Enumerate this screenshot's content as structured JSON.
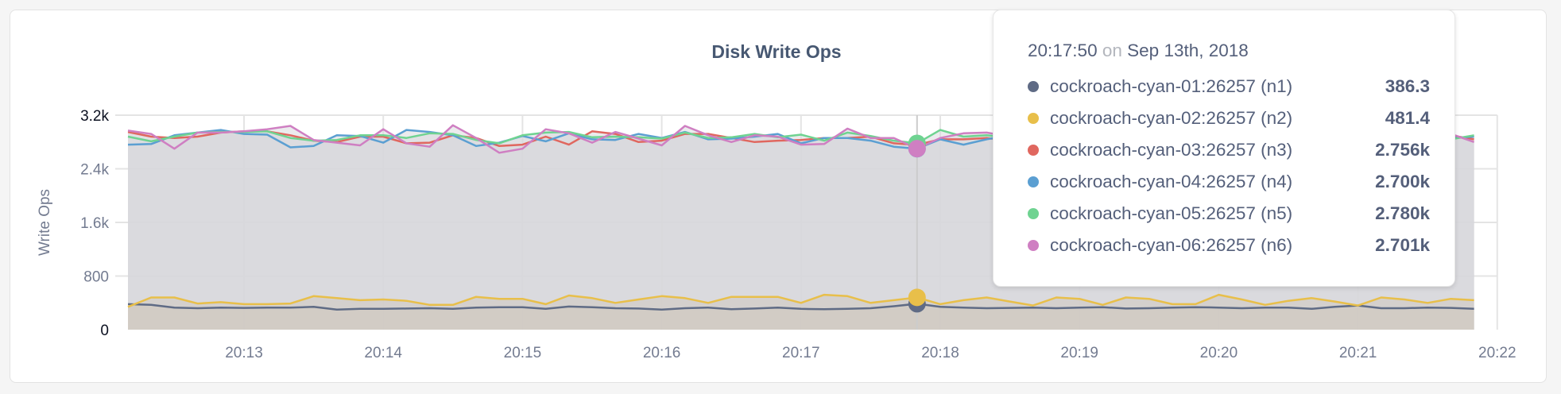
{
  "chart_data": {
    "type": "line",
    "title": "Disk Write Ops",
    "ylabel": "Write Ops",
    "xlabel": "",
    "ylim": [
      0,
      3200
    ],
    "yticks": [
      "0",
      "800",
      "1.6k",
      "2.4k",
      "3.2k"
    ],
    "xticks": [
      "20:13",
      "20:14",
      "20:15",
      "20:16",
      "20:17",
      "20:18",
      "20:19",
      "20:20",
      "20:21",
      "20:22"
    ],
    "xlim": [
      "20:12:10",
      "20:22:00"
    ],
    "x_start": "20:12:10",
    "x_step_seconds": 10,
    "grid": true,
    "legend": "none",
    "series": [
      {
        "name": "cockroach-cyan-01:26257 (n1)",
        "color": "#5f6b85",
        "values": [
          380,
          370,
          330,
          320,
          330,
          325,
          330,
          330,
          340,
          300,
          310,
          310,
          315,
          320,
          310,
          330,
          335,
          335,
          310,
          345,
          335,
          320,
          315,
          300,
          320,
          330,
          305,
          315,
          330,
          310,
          305,
          310,
          320,
          350,
          386.3,
          340,
          330,
          320,
          325,
          330,
          320,
          330,
          335,
          315,
          320,
          330,
          335,
          330,
          320,
          330,
          330,
          310,
          340,
          360,
          320,
          320,
          330,
          325,
          310
        ]
      },
      {
        "name": "cockroach-cyan-02:26257 (n2)",
        "color": "#e8bf4a",
        "values": [
          340,
          480,
          480,
          390,
          410,
          380,
          380,
          390,
          500,
          470,
          440,
          450,
          430,
          370,
          370,
          490,
          460,
          460,
          380,
          510,
          470,
          400,
          450,
          500,
          470,
          400,
          490,
          490,
          490,
          400,
          520,
          500,
          400,
          440,
          481.4,
          380,
          440,
          480,
          420,
          360,
          480,
          460,
          370,
          480,
          460,
          380,
          380,
          520,
          450,
          370,
          430,
          470,
          420,
          360,
          480,
          450,
          400,
          460,
          440
        ]
      },
      {
        "name": "cockroach-cyan-03:26257 (n3)",
        "color": "#e0675f",
        "values": [
          2950,
          2880,
          2860,
          2880,
          2940,
          2960,
          2960,
          2900,
          2820,
          2800,
          2880,
          2880,
          2780,
          2790,
          2900,
          2860,
          2740,
          2760,
          2880,
          2760,
          2960,
          2920,
          2800,
          2820,
          2920,
          2920,
          2860,
          2800,
          2820,
          2830,
          2860,
          2860,
          2880,
          2780,
          2756,
          2840,
          2840,
          2860,
          2820,
          2900,
          2860,
          2880,
          2820,
          2900,
          2880,
          2840,
          2860,
          2820,
          2860,
          2900,
          2880,
          2840,
          2900,
          2860,
          2820,
          2860,
          2880,
          2900,
          2840
        ]
      },
      {
        "name": "cockroach-cyan-04:26257 (n4)",
        "color": "#5b9fd2",
        "values": [
          2760,
          2770,
          2900,
          2940,
          2980,
          2920,
          2910,
          2720,
          2740,
          2900,
          2890,
          2790,
          2980,
          2950,
          2900,
          2740,
          2790,
          2890,
          2810,
          2930,
          2840,
          2830,
          2920,
          2860,
          2950,
          2840,
          2850,
          2880,
          2920,
          2780,
          2860,
          2860,
          2820,
          2730,
          2700,
          2840,
          2760,
          2840,
          2900,
          2800,
          2830,
          2890,
          2860,
          2780,
          2820,
          2880,
          2790,
          2860,
          2900,
          2820,
          2840,
          2800,
          2880,
          2860,
          2820,
          2880,
          2900,
          2860,
          2880
        ]
      },
      {
        "name": "cockroach-cyan-05:26257 (n5)",
        "color": "#6fd391",
        "values": [
          2880,
          2810,
          2880,
          2940,
          2950,
          2950,
          2960,
          2860,
          2820,
          2830,
          2900,
          2900,
          2860,
          2930,
          2920,
          2830,
          2780,
          2900,
          2940,
          2950,
          2870,
          2880,
          2870,
          2850,
          2940,
          2860,
          2870,
          2920,
          2870,
          2910,
          2820,
          2940,
          2890,
          2820,
          2780,
          2980,
          2880,
          2900,
          2860,
          2840,
          2920,
          2880,
          2840,
          2880,
          2900,
          2860,
          2920,
          2880,
          2840,
          2900,
          2860,
          2900,
          2880,
          2840,
          2900,
          2860,
          2880,
          2840,
          2900
        ]
      },
      {
        "name": "cockroach-cyan-06:26257 (n6)",
        "color": "#cf7fc2",
        "values": [
          2970,
          2920,
          2700,
          2940,
          2940,
          2960,
          2990,
          3040,
          2830,
          2790,
          2750,
          2990,
          2780,
          2730,
          3050,
          2860,
          2640,
          2700,
          2990,
          2930,
          2790,
          2950,
          2850,
          2750,
          3040,
          2900,
          2800,
          2900,
          2880,
          2760,
          2770,
          3000,
          2860,
          2860,
          2701,
          2860,
          2930,
          2940,
          2880,
          2760,
          2900,
          2860,
          2940,
          2800,
          2880,
          2920,
          2840,
          2900,
          2860,
          2800,
          2900,
          2860,
          2820,
          2880,
          2900,
          2840,
          2880,
          2920,
          2800
        ]
      }
    ]
  },
  "tooltip": {
    "time": "20:17:50",
    "on": "on",
    "date": "Sep 13th, 2018",
    "rows": [
      {
        "label": "cockroach-cyan-01:26257 (n1)",
        "value": "386.3",
        "color": "#5f6b85"
      },
      {
        "label": "cockroach-cyan-02:26257 (n2)",
        "value": "481.4",
        "color": "#e8bf4a"
      },
      {
        "label": "cockroach-cyan-03:26257 (n3)",
        "value": "2.756k",
        "color": "#e0675f"
      },
      {
        "label": "cockroach-cyan-04:26257 (n4)",
        "value": "2.700k",
        "color": "#5b9fd2"
      },
      {
        "label": "cockroach-cyan-05:26257 (n5)",
        "value": "2.780k",
        "color": "#6fd391"
      },
      {
        "label": "cockroach-cyan-06:26257 (n6)",
        "value": "2.701k",
        "color": "#cf7fc2"
      }
    ]
  }
}
